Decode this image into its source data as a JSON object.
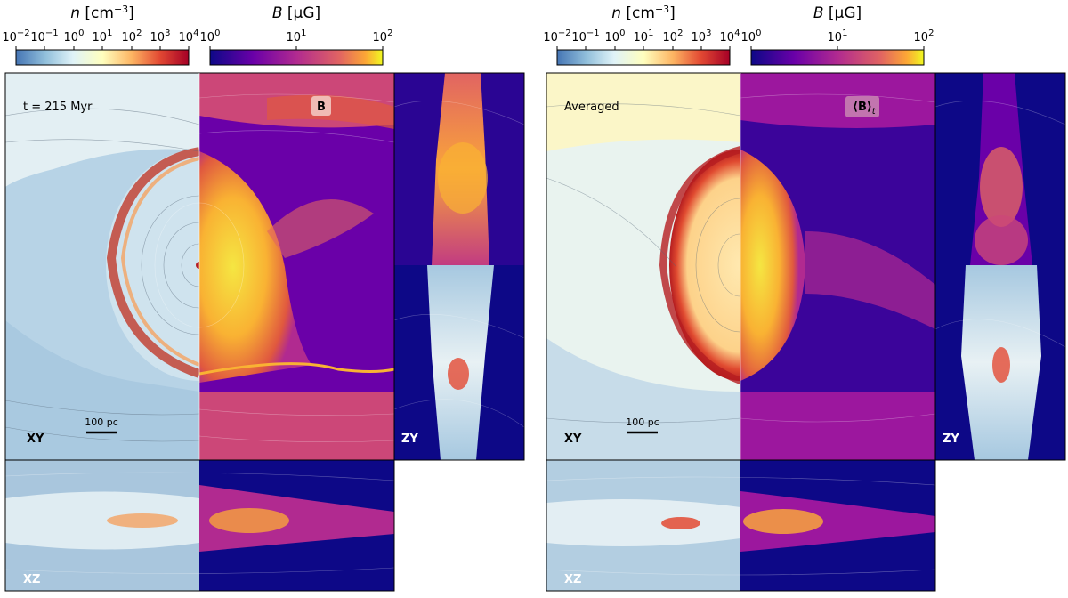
{
  "colorbars": {
    "density": {
      "title_html": "n [cm⁻³]",
      "title_var": "n",
      "title_unit": "[cm",
      "title_exp": "−3",
      "title_close": "]",
      "ticks": [
        {
          "base": "10",
          "exp": "−2"
        },
        {
          "base": "10",
          "exp": "−1"
        },
        {
          "base": "10",
          "exp": "0"
        },
        {
          "base": "10",
          "exp": "1"
        },
        {
          "base": "10",
          "exp": "2"
        },
        {
          "base": "10",
          "exp": "3"
        },
        {
          "base": "10",
          "exp": "4"
        }
      ],
      "colormap": "RdYlBu_r"
    },
    "bfield": {
      "title_var": "B",
      "title_unit": "[μG]",
      "ticks": [
        {
          "base": "10",
          "exp": "0"
        },
        {
          "base": "10",
          "exp": "1"
        },
        {
          "base": "10",
          "exp": "2"
        }
      ],
      "colormap": "plasma"
    }
  },
  "panels": {
    "left": {
      "time_label": "t = 215 Myr",
      "field_label": "B",
      "scale_bar": "100 pc",
      "xy_label": "XY",
      "zy_label": "ZY",
      "xz_label": "XZ"
    },
    "right": {
      "time_label": "Averaged",
      "field_label": "⟨B⟩",
      "field_subscript": "t",
      "scale_bar": "100 pc",
      "xy_label": "XY",
      "zy_label": "ZY",
      "xz_label": "XZ"
    }
  },
  "colors": {
    "plasma_dark": "#0d0887",
    "plasma_mid": "#cc4778",
    "plasma_bright": "#f0f921",
    "density_blue": "#4575b4",
    "density_light": "#ffffbf",
    "density_red": "#a50026"
  }
}
